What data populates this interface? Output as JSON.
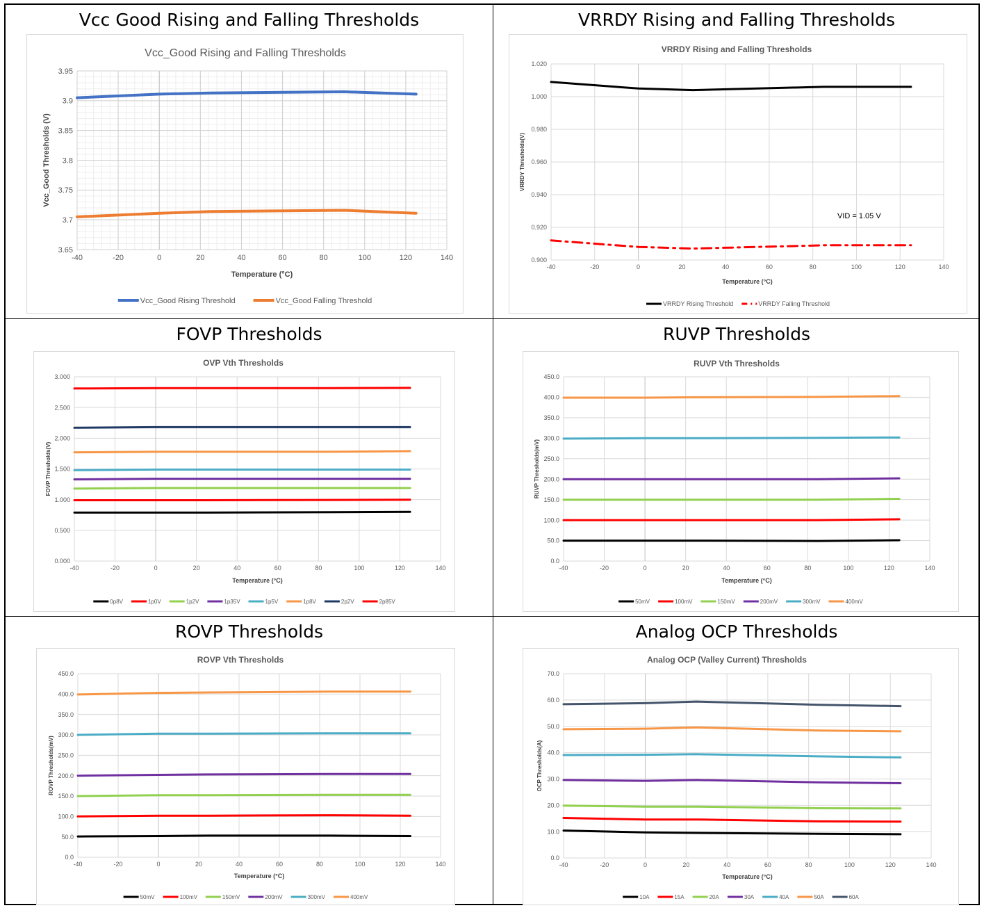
{
  "panels": [
    {
      "heading": "Vcc Good Rising and Falling Thresholds"
    },
    {
      "heading": "VRRDY Rising and Falling Thresholds"
    },
    {
      "heading": "FOVP Thresholds"
    },
    {
      "heading": "RUVP Thresholds"
    },
    {
      "heading": "ROVP Thresholds"
    },
    {
      "heading": "Analog OCP Thresholds"
    }
  ],
  "chart_data": [
    {
      "type": "line",
      "title": "Vcc_Good Rising and Falling Thresholds",
      "xlabel": "Temperature (°C)",
      "ylabel": "Vcc_Good Thresholds (V)",
      "xlim": [
        -40,
        140
      ],
      "xticks": [
        "-40",
        "-20",
        "0",
        "20",
        "40",
        "60",
        "80",
        "100",
        "120",
        "140"
      ],
      "ylim": [
        3.65,
        3.95
      ],
      "yticks": [
        "3.65",
        "3.7",
        "3.75",
        "3.8",
        "3.85",
        "3.9",
        "3.95"
      ],
      "grid": "major and minor",
      "legend": "bottom",
      "x": [
        -40,
        0,
        25,
        90,
        125
      ],
      "series": [
        {
          "name": "Vcc_Good Rising Threshold",
          "color": "#4472c4",
          "values": [
            3.905,
            3.911,
            3.913,
            3.915,
            3.911
          ]
        },
        {
          "name": "Vcc_Good Falling Threshold",
          "color": "#ed7d31",
          "values": [
            3.705,
            3.711,
            3.714,
            3.716,
            3.711
          ]
        }
      ]
    },
    {
      "type": "line",
      "title": "VRRDY Rising and Falling Thresholds",
      "xlabel": "Temperature (°C)",
      "ylabel": "VRRDY Thresholds(V)",
      "xlim": [
        -40,
        140
      ],
      "xticks": [
        "-40",
        "-20",
        "0",
        "20",
        "40",
        "60",
        "80",
        "100",
        "120",
        "140"
      ],
      "ylim": [
        0.9,
        1.02
      ],
      "yticks": [
        "0.900",
        "0.920",
        "0.940",
        "0.960",
        "0.980",
        "1.000",
        "1.020"
      ],
      "grid": "major",
      "legend": "bottom",
      "annotation": "VID = 1.05 V",
      "x": [
        -40,
        0,
        25,
        85,
        125
      ],
      "series": [
        {
          "name": "VRRDY Rising Threshold",
          "color": "#000000",
          "values": [
            1.009,
            1.005,
            1.004,
            1.006,
            1.006
          ]
        },
        {
          "name": "VRRDY Falling Threshold",
          "color": "#ff0000",
          "dash": "dashdot",
          "values": [
            0.912,
            0.908,
            0.907,
            0.909,
            0.909
          ]
        }
      ]
    },
    {
      "type": "line",
      "title": "OVP Vth Thresholds",
      "xlabel": "Temperature (°C)",
      "ylabel": "FOVP Thresholds(V)",
      "xlim": [
        -40,
        140
      ],
      "xticks": [
        "-40",
        "-20",
        "0",
        "20",
        "40",
        "60",
        "80",
        "100",
        "120",
        "140"
      ],
      "ylim": [
        0,
        3
      ],
      "yticks": [
        "0.000",
        "0.500",
        "1.000",
        "1.500",
        "2.000",
        "2.500",
        "3.000"
      ],
      "grid": "major",
      "legend": "bottom",
      "x": [
        -40,
        0,
        25,
        85,
        125
      ],
      "series": [
        {
          "name": "0p8V",
          "color": "#000000",
          "values": [
            0.79,
            0.79,
            0.79,
            0.795,
            0.8
          ]
        },
        {
          "name": "1p0V",
          "color": "#ff0000",
          "values": [
            0.99,
            0.99,
            0.99,
            0.995,
            1.0
          ]
        },
        {
          "name": "1p2V",
          "color": "#92d050",
          "values": [
            1.18,
            1.19,
            1.19,
            1.19,
            1.19
          ]
        },
        {
          "name": "1p35V",
          "color": "#7030a0",
          "values": [
            1.33,
            1.34,
            1.34,
            1.34,
            1.34
          ]
        },
        {
          "name": "1p5V",
          "color": "#4bacc6",
          "values": [
            1.48,
            1.49,
            1.49,
            1.49,
            1.49
          ]
        },
        {
          "name": "1p8V",
          "color": "#f79646",
          "values": [
            1.77,
            1.78,
            1.78,
            1.78,
            1.79
          ]
        },
        {
          "name": "2p2V",
          "color": "#1f3864",
          "values": [
            2.17,
            2.18,
            2.18,
            2.18,
            2.18
          ]
        },
        {
          "name": "2p85V",
          "color": "#ff0000",
          "values": [
            2.81,
            2.815,
            2.815,
            2.815,
            2.82
          ]
        }
      ]
    },
    {
      "type": "line",
      "title": "RUVP Vth Thresholds",
      "xlabel": "Temperature (°C)",
      "ylabel": "RUVP Thresholds(mV)",
      "xlim": [
        -40,
        140
      ],
      "xticks": [
        "-40",
        "-20",
        "0",
        "20",
        "40",
        "60",
        "80",
        "100",
        "120",
        "140"
      ],
      "ylim": [
        0,
        450
      ],
      "yticks": [
        "0.0",
        "50.0",
        "100.0",
        "150.0",
        "200.0",
        "250.0",
        "300.0",
        "350.0",
        "400.0",
        "450.0"
      ],
      "grid": "major",
      "legend": "bottom",
      "x": [
        -40,
        0,
        25,
        85,
        125
      ],
      "series": [
        {
          "name": "50mV",
          "color": "#000000",
          "values": [
            50,
            50,
            50,
            49,
            51
          ]
        },
        {
          "name": "100mV",
          "color": "#ff0000",
          "values": [
            100,
            100,
            100,
            100,
            102
          ]
        },
        {
          "name": "150mV",
          "color": "#92d050",
          "values": [
            150,
            150,
            150,
            150,
            152
          ]
        },
        {
          "name": "200mV",
          "color": "#7030a0",
          "values": [
            200,
            200,
            200,
            200,
            202
          ]
        },
        {
          "name": "300mV",
          "color": "#4bacc6",
          "values": [
            299,
            300,
            300,
            301,
            302
          ]
        },
        {
          "name": "400mV",
          "color": "#f79646",
          "values": [
            399,
            399,
            400,
            401,
            403
          ]
        }
      ]
    },
    {
      "type": "line",
      "title": "ROVP Vth Thresholds",
      "xlabel": "Temperature (°C)",
      "ylabel": "ROVP Thresholds(mV)",
      "xlim": [
        -40,
        140
      ],
      "xticks": [
        "-40",
        "-20",
        "0",
        "20",
        "40",
        "60",
        "80",
        "100",
        "120",
        "140"
      ],
      "ylim": [
        0,
        450
      ],
      "yticks": [
        "0.0",
        "50.0",
        "100.0",
        "150.0",
        "200.0",
        "250.0",
        "300.0",
        "350.0",
        "400.0",
        "450.0"
      ],
      "grid": "major",
      "legend": "bottom",
      "x": [
        -40,
        0,
        25,
        85,
        125
      ],
      "series": [
        {
          "name": "50mV",
          "color": "#000000",
          "values": [
            51,
            52,
            53,
            53,
            52
          ]
        },
        {
          "name": "100mV",
          "color": "#ff0000",
          "values": [
            100,
            102,
            102,
            103,
            102
          ]
        },
        {
          "name": "150mV",
          "color": "#92d050",
          "values": [
            150,
            152,
            152,
            153,
            153
          ]
        },
        {
          "name": "200mV",
          "color": "#7030a0",
          "values": [
            200,
            202,
            203,
            204,
            204
          ]
        },
        {
          "name": "300mV",
          "color": "#4bacc6",
          "values": [
            300,
            303,
            303,
            304,
            304
          ]
        },
        {
          "name": "400mV",
          "color": "#f79646",
          "values": [
            399,
            403,
            404,
            406,
            406
          ]
        }
      ]
    },
    {
      "type": "line",
      "title": "Analog OCP (Valley Current) Thresholds",
      "xlabel": "Temperature (°C)",
      "ylabel": "OCP Thresholds(A)",
      "xlim": [
        -40,
        140
      ],
      "xticks": [
        "-40",
        "-20",
        "0",
        "20",
        "40",
        "60",
        "80",
        "100",
        "120",
        "140"
      ],
      "ylim": [
        0,
        70
      ],
      "yticks": [
        "0.0",
        "10.0",
        "20.0",
        "30.0",
        "40.0",
        "50.0",
        "60.0",
        "70.0"
      ],
      "grid": "major",
      "legend": "bottom",
      "x": [
        -40,
        0,
        25,
        85,
        125
      ],
      "series": [
        {
          "name": "10A",
          "color": "#000000",
          "values": [
            10.4,
            9.7,
            9.5,
            9.2,
            9.0
          ]
        },
        {
          "name": "15A",
          "color": "#ff0000",
          "values": [
            15.2,
            14.6,
            14.6,
            13.9,
            13.8
          ]
        },
        {
          "name": "20A",
          "color": "#92d050",
          "values": [
            19.9,
            19.5,
            19.5,
            18.9,
            18.8
          ]
        },
        {
          "name": "30A",
          "color": "#7030a0",
          "values": [
            29.6,
            29.3,
            29.6,
            28.7,
            28.4
          ]
        },
        {
          "name": "40A",
          "color": "#4bacc6",
          "values": [
            39.1,
            39.2,
            39.4,
            38.6,
            38.2
          ]
        },
        {
          "name": "50A",
          "color": "#f79646",
          "values": [
            48.9,
            49.1,
            49.6,
            48.4,
            48.1
          ]
        },
        {
          "name": "60A",
          "color": "#44546a",
          "values": [
            58.4,
            58.8,
            59.4,
            58.2,
            57.7
          ]
        }
      ]
    }
  ]
}
